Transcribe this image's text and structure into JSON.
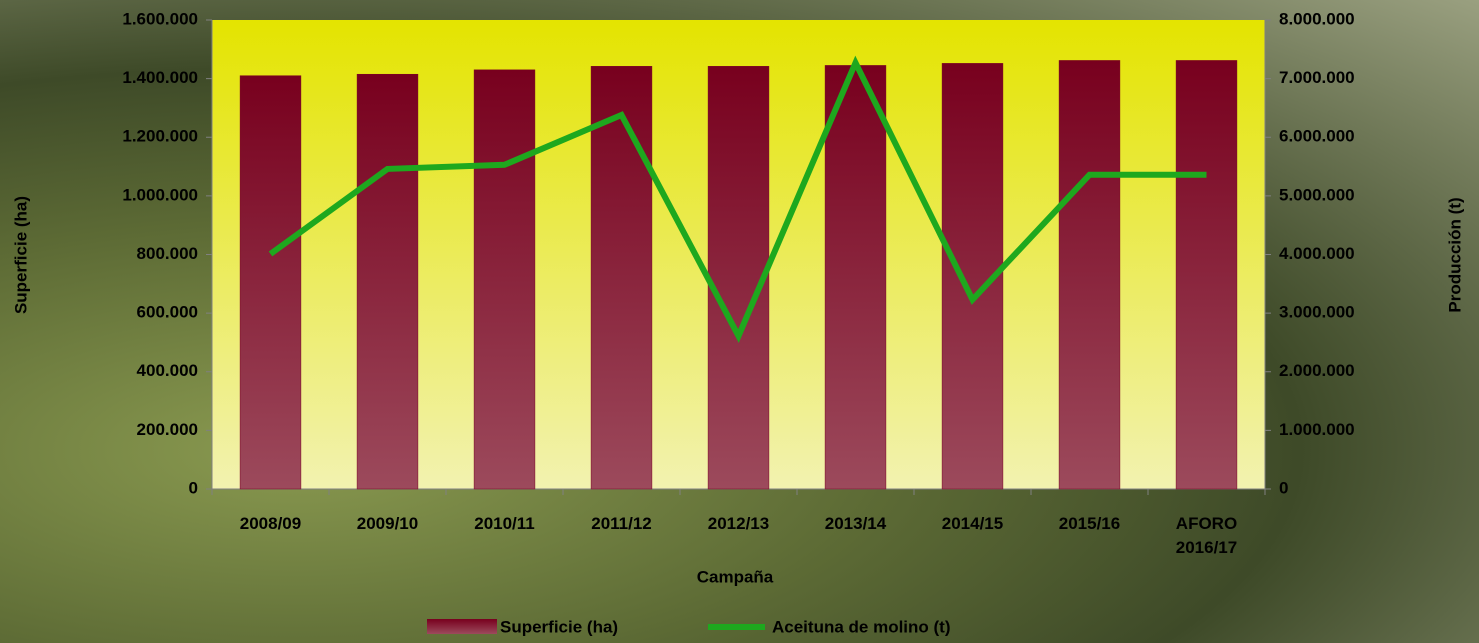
{
  "chart_data": {
    "type": "bar_line",
    "x_label": "Campaña",
    "y_label": "Superficie (ha)",
    "y2_label": "Producción (t)",
    "categories": [
      "2008/09",
      "2009/10",
      "2010/11",
      "2011/12",
      "2012/13",
      "2013/14",
      "2014/15",
      "2015/16",
      "AFORO 2016/17"
    ],
    "series": [
      {
        "name": "Superficie (ha)",
        "type": "bar",
        "color": "#7a0022",
        "values": [
          1410000,
          1415000,
          1430000,
          1442000,
          1442000,
          1445000,
          1452000,
          1462000,
          1462000
        ]
      },
      {
        "name": "Aceituna de molino (t)",
        "type": "line",
        "axis": "y2",
        "color": "#1ea81e",
        "values": [
          4010000,
          5460000,
          5530000,
          6380000,
          2610000,
          7270000,
          3230000,
          5360000,
          5360000
        ]
      }
    ],
    "ylim": [
      0,
      1600000
    ],
    "yticks": [
      0,
      {
        "value": 200000,
        "label": "200.000"
      },
      {
        "value": 400000,
        "label": "400.000"
      },
      {
        "value": 600000,
        "label": "600.000"
      },
      {
        "value": 800000,
        "label": "800.000"
      },
      {
        "value": 1000000,
        "label": "1.000.000"
      },
      {
        "value": 1200000,
        "label": "1.200.000"
      },
      {
        "value": 1400000,
        "label": "1.400.000"
      },
      {
        "value": 1600000,
        "label": "1.600.000"
      }
    ],
    "y2lim": [
      0,
      8000000
    ],
    "y2ticks": [
      0,
      {
        "value": 1000000,
        "label": "1.000.000"
      },
      {
        "value": 2000000,
        "label": "2.000.000"
      },
      {
        "value": 3000000,
        "label": "3.000.000"
      },
      {
        "value": 4000000,
        "label": "4.000.000"
      },
      {
        "value": 5000000,
        "label": "5.000.000"
      },
      {
        "value": 6000000,
        "label": "6.000.000"
      },
      {
        "value": 7000000,
        "label": "7.000.000"
      },
      {
        "value": 8000000,
        "label": "8.000.000"
      }
    ],
    "legend": "bottom"
  }
}
